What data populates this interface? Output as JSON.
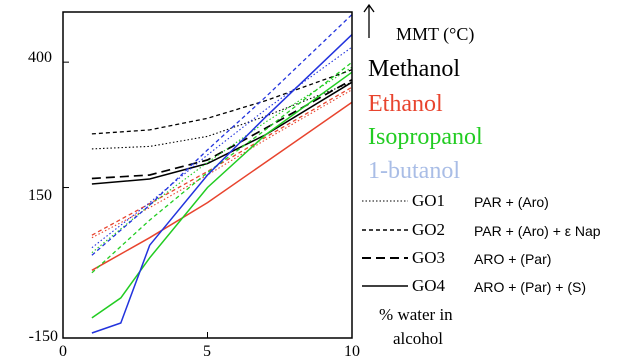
{
  "chart_data": {
    "type": "line",
    "title": "",
    "ylabel": "MMT (°C)",
    "xlabel": "% water in alcohol",
    "xlim": [
      0,
      10
    ],
    "ylim": [
      -150,
      500
    ],
    "xticks": [
      "0",
      "5",
      "10"
    ],
    "yticks": [
      "400",
      "150",
      "-150"
    ],
    "grid": false,
    "solvent_legend": [
      {
        "label": "Methanol",
        "color": "#000000"
      },
      {
        "label": "Ethanol",
        "color": "#e8442e"
      },
      {
        "label": "Isopropanol",
        "color": "#22cc22"
      },
      {
        "label": "1-butanol",
        "color": "#a9bde6"
      }
    ],
    "style_legend": [
      {
        "name": "GO1",
        "desc": "PAR + (Aro)",
        "dash": "dotted"
      },
      {
        "name": "GO2",
        "desc": "PAR + (Aro) + ε Nap",
        "dash": "dashed"
      },
      {
        "name": "GO3",
        "desc": "ARO + (Par)",
        "dash": "longdash"
      },
      {
        "name": "GO4",
        "desc": "ARO + (Par) + (S)",
        "dash": "solid"
      }
    ],
    "series": [
      {
        "solvent": "Methanol",
        "go": "GO1",
        "color": "#000000",
        "dash": "dotted",
        "x": [
          1,
          3,
          5,
          7,
          10
        ],
        "y": [
          227,
          232,
          252,
          292,
          360
        ]
      },
      {
        "solvent": "Methanol",
        "go": "GO2",
        "color": "#000000",
        "dash": "dashed",
        "x": [
          1,
          3,
          5,
          7,
          10
        ],
        "y": [
          257,
          265,
          288,
          323,
          385
        ]
      },
      {
        "solvent": "Methanol",
        "go": "GO3",
        "color": "#000000",
        "dash": "longdash",
        "x": [
          1,
          3,
          5,
          7,
          10
        ],
        "y": [
          168,
          175,
          205,
          268,
          365
        ]
      },
      {
        "solvent": "Methanol",
        "go": "GO4",
        "color": "#000000",
        "dash": "solid",
        "x": [
          1,
          3,
          5,
          7,
          10
        ],
        "y": [
          157,
          167,
          198,
          255,
          360
        ]
      },
      {
        "solvent": "Ethanol",
        "go": "GO1",
        "color": "#e8442e",
        "dash": "dotted",
        "x": [
          1,
          3,
          5,
          7,
          10
        ],
        "y": [
          50,
          110,
          175,
          245,
          345
        ]
      },
      {
        "solvent": "Ethanol",
        "go": "GO2",
        "color": "#e8442e",
        "dash": "dashed",
        "x": [
          1,
          3,
          5,
          7,
          10
        ],
        "y": [
          55,
          118,
          182,
          250,
          350
        ]
      },
      {
        "solvent": "Ethanol",
        "go": "GO4",
        "color": "#e8442e",
        "dash": "solid",
        "x": [
          1,
          3,
          5,
          7,
          10
        ],
        "y": [
          -15,
          50,
          120,
          200,
          320
        ]
      },
      {
        "solvent": "Isopropanol",
        "go": "GO1",
        "color": "#22cc22",
        "dash": "dotted",
        "x": [
          1,
          3,
          5,
          7,
          10
        ],
        "y": [
          20,
          115,
          200,
          280,
          390
        ]
      },
      {
        "solvent": "Isopropanol",
        "go": "GO2",
        "color": "#22cc22",
        "dash": "dashed",
        "x": [
          1,
          3,
          5,
          7,
          10
        ],
        "y": [
          -20,
          85,
          180,
          265,
          400
        ]
      },
      {
        "solvent": "Isopropanol",
        "go": "GO4",
        "color": "#22cc22",
        "dash": "solid",
        "x": [
          1,
          2,
          3,
          5,
          7,
          10
        ],
        "y": [
          -110,
          -70,
          10,
          150,
          255,
          380
        ]
      },
      {
        "solvent": "1-butanol",
        "go": "GO1",
        "color": "#2233dd",
        "dash": "dotted",
        "x": [
          1,
          3,
          5,
          7,
          10
        ],
        "y": [
          30,
          120,
          215,
          305,
          430
        ]
      },
      {
        "solvent": "1-butanol",
        "go": "GO2",
        "color": "#2233dd",
        "dash": "dashed",
        "x": [
          1,
          3,
          5,
          7,
          10
        ],
        "y": [
          15,
          115,
          225,
          330,
          495
        ]
      },
      {
        "solvent": "1-butanol",
        "go": "GO4",
        "color": "#2233dd",
        "dash": "solid",
        "x": [
          1,
          2,
          3,
          5,
          7,
          10
        ],
        "y": [
          -140,
          -120,
          35,
          175,
          290,
          455
        ]
      }
    ]
  }
}
